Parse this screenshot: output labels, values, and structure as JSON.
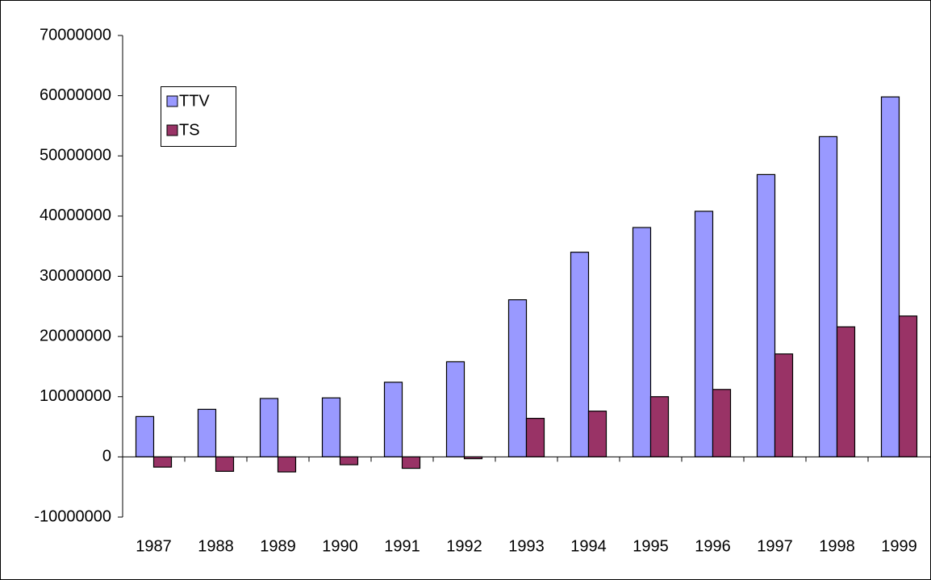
{
  "chart_data": {
    "type": "bar",
    "categories": [
      "1987",
      "1988",
      "1989",
      "1990",
      "1991",
      "1992",
      "1993",
      "1994",
      "1995",
      "1996",
      "1997",
      "1998",
      "1999"
    ],
    "series": [
      {
        "name": "TTV",
        "color": "#9999ff",
        "values": [
          6700000,
          7900000,
          9700000,
          9800000,
          12400000,
          15800000,
          26100000,
          34000000,
          38100000,
          40800000,
          46900000,
          53200000,
          59800000
        ]
      },
      {
        "name": "TS",
        "color": "#993366",
        "values": [
          -1700000,
          -2400000,
          -2500000,
          -1300000,
          -1900000,
          -300000,
          6400000,
          7600000,
          10000000,
          11200000,
          17100000,
          21600000,
          23400000
        ]
      }
    ],
    "ylim": [
      -10000000,
      70000000
    ],
    "yticks": [
      -10000000,
      0,
      10000000,
      20000000,
      30000000,
      40000000,
      50000000,
      60000000,
      70000000
    ]
  }
}
